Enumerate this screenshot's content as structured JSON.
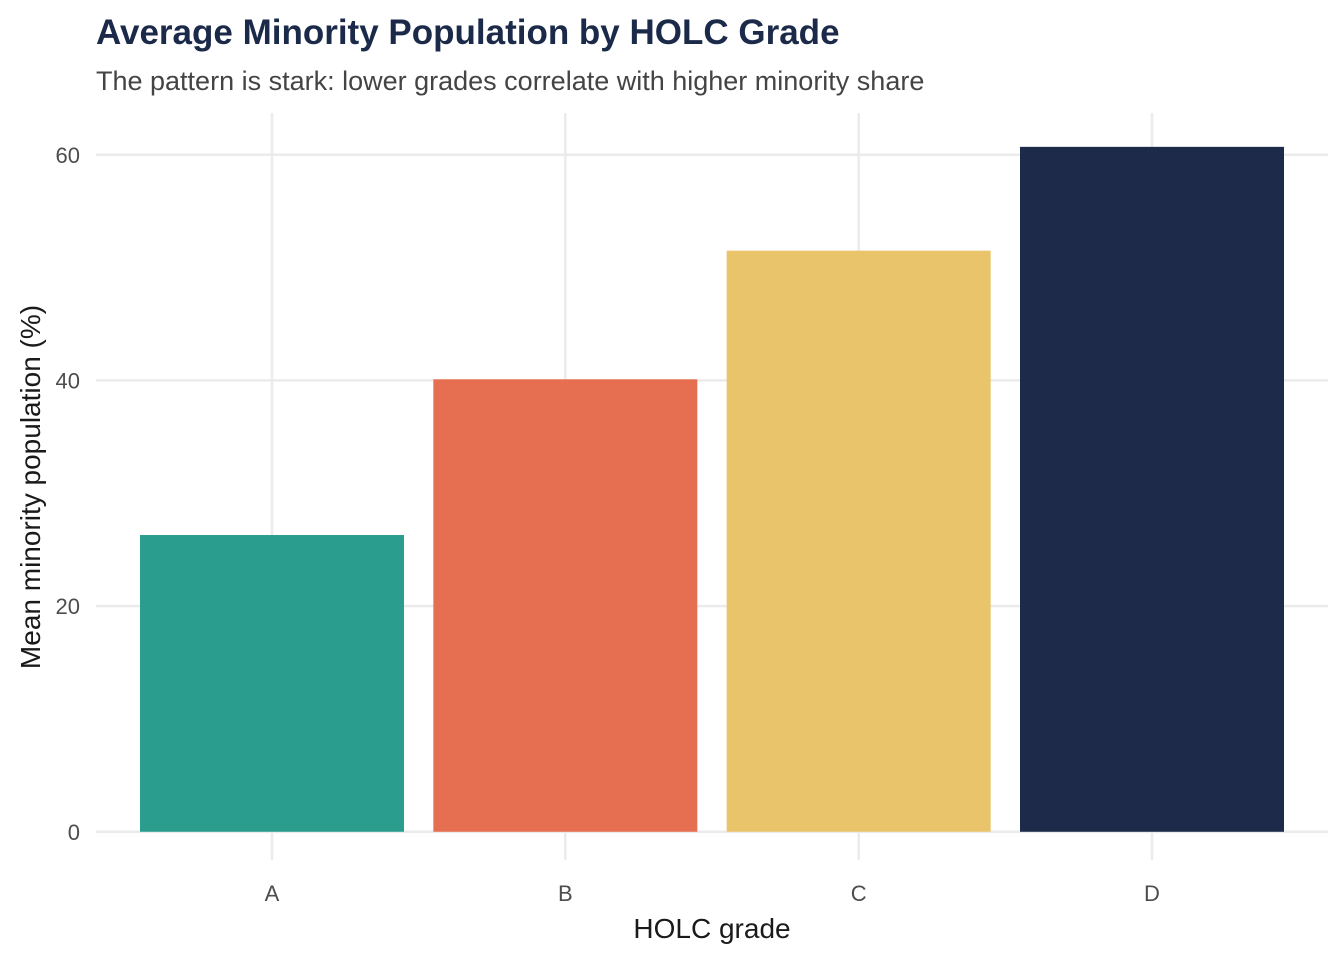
{
  "chart_data": {
    "type": "bar",
    "title": "Average Minority Population by HOLC Grade",
    "subtitle": "The pattern is stark: lower grades correlate with higher minority share",
    "xlabel": "HOLC grade",
    "ylabel": "Mean minority population (%)",
    "categories": [
      "A",
      "B",
      "C",
      "D"
    ],
    "values": [
      26.3,
      40.1,
      51.5,
      60.7
    ],
    "colors": [
      "#2a9d8f",
      "#e76f51",
      "#e9c46a",
      "#1d2a4a"
    ],
    "yticks": [
      0,
      20,
      40,
      60
    ],
    "ylim": [
      -2.5,
      63.7
    ],
    "grid": true,
    "legend": "none"
  }
}
